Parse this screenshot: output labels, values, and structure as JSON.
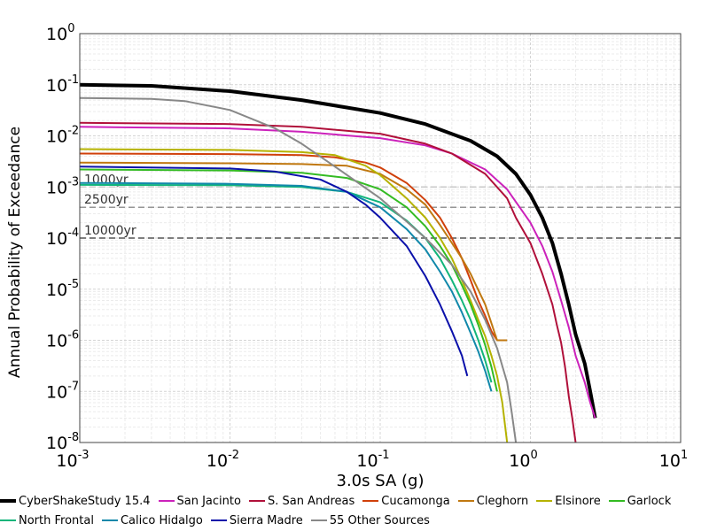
{
  "chart_data": {
    "type": "line",
    "xlabel": "3.0s SA (g)",
    "ylabel": "Annual Probability of Exceedance",
    "xscale": "log",
    "yscale": "log",
    "xlim": [
      0.001,
      10
    ],
    "ylim": [
      1e-08,
      1
    ],
    "grid": true,
    "legend_position": "bottom",
    "x_ticks": [
      {
        "base": "10",
        "exp": "-3"
      },
      {
        "base": "10",
        "exp": "-2"
      },
      {
        "base": "10",
        "exp": "-1"
      },
      {
        "base": "10",
        "exp": "0"
      },
      {
        "base": "10",
        "exp": "1"
      }
    ],
    "y_ticks": [
      {
        "base": "10",
        "exp": "0"
      },
      {
        "base": "10",
        "exp": "-1"
      },
      {
        "base": "10",
        "exp": "-2"
      },
      {
        "base": "10",
        "exp": "-3"
      },
      {
        "base": "10",
        "exp": "-4"
      },
      {
        "base": "10",
        "exp": "-5"
      },
      {
        "base": "10",
        "exp": "-6"
      },
      {
        "base": "10",
        "exp": "-7"
      },
      {
        "base": "10",
        "exp": "-8"
      }
    ],
    "reference_lines": [
      {
        "label": "1000yr",
        "y": 0.001,
        "color": "#c8c8c8"
      },
      {
        "label": "2500yr",
        "y": 0.0004,
        "color": "#969696"
      },
      {
        "label": "10000yr",
        "y": 0.0001,
        "color": "#555555"
      }
    ],
    "series": [
      {
        "name": "CyberShakeStudy 15.4",
        "color": "#000000",
        "width": 4,
        "x": [
          0.001,
          0.003,
          0.01,
          0.03,
          0.1,
          0.2,
          0.4,
          0.6,
          0.8,
          1.0,
          1.2,
          1.4,
          1.6,
          1.8,
          2.0,
          2.3,
          2.5,
          2.7
        ],
        "y": [
          0.1,
          0.095,
          0.075,
          0.05,
          0.028,
          0.017,
          0.008,
          0.004,
          0.0018,
          0.0007,
          0.00025,
          8e-05,
          2e-05,
          5e-06,
          1.3e-06,
          3.5e-07,
          1e-07,
          3e-08
        ]
      },
      {
        "name": "San Jacinto",
        "color": "#cc22bb",
        "width": 2,
        "x": [
          0.001,
          0.01,
          0.03,
          0.1,
          0.2,
          0.3,
          0.5,
          0.7,
          1.0,
          1.2,
          1.4,
          1.6,
          1.8,
          2.0,
          2.3,
          2.5,
          2.7
        ],
        "y": [
          0.015,
          0.014,
          0.012,
          0.009,
          0.0065,
          0.0045,
          0.0022,
          0.0009,
          0.0002,
          7e-05,
          2.2e-05,
          6e-06,
          1.8e-06,
          5e-07,
          1.5e-07,
          6e-08,
          3e-08
        ]
      },
      {
        "name": "S. San Andreas",
        "color": "#b0103a",
        "width": 2,
        "x": [
          0.001,
          0.01,
          0.03,
          0.1,
          0.2,
          0.3,
          0.5,
          0.7,
          0.8,
          1.0,
          1.2,
          1.4,
          1.5,
          1.6,
          1.7,
          1.8,
          1.9,
          2.0
        ],
        "y": [
          0.018,
          0.017,
          0.015,
          0.011,
          0.007,
          0.0045,
          0.0018,
          0.0006,
          0.00025,
          8e-05,
          2e-05,
          5e-06,
          2e-06,
          9e-07,
          3e-07,
          8e-08,
          3e-08,
          1e-08
        ]
      },
      {
        "name": "Cucamonga",
        "color": "#d0400a",
        "width": 2,
        "x": [
          0.001,
          0.01,
          0.03,
          0.05,
          0.08,
          0.1,
          0.15,
          0.2,
          0.25,
          0.3,
          0.35,
          0.4,
          0.45,
          0.5,
          0.55,
          0.6
        ],
        "y": [
          0.0045,
          0.0044,
          0.0042,
          0.0038,
          0.003,
          0.0024,
          0.0012,
          0.00055,
          0.00025,
          0.0001,
          4e-05,
          1.5e-05,
          6e-06,
          3e-06,
          1.5e-06,
          1e-06
        ]
      },
      {
        "name": "Cleghorn",
        "color": "#c07810",
        "width": 2,
        "x": [
          0.001,
          0.01,
          0.03,
          0.06,
          0.1,
          0.15,
          0.2,
          0.25,
          0.3,
          0.35,
          0.4,
          0.5,
          0.6,
          0.7
        ],
        "y": [
          0.003,
          0.0029,
          0.0028,
          0.0026,
          0.0018,
          0.0009,
          0.00045,
          0.00018,
          8e-05,
          4e-05,
          2e-05,
          5e-06,
          1e-06,
          1e-06
        ]
      },
      {
        "name": "Elsinore",
        "color": "#b5b200",
        "width": 2,
        "x": [
          0.001,
          0.01,
          0.03,
          0.05,
          0.08,
          0.1,
          0.15,
          0.2,
          0.25,
          0.3,
          0.35,
          0.4,
          0.45,
          0.5,
          0.55,
          0.6,
          0.65,
          0.68,
          0.7
        ],
        "y": [
          0.0055,
          0.0053,
          0.0048,
          0.0042,
          0.0026,
          0.0017,
          0.0006,
          0.00025,
          0.0001,
          4e-05,
          1.5e-05,
          6e-06,
          2.5e-06,
          1.2e-06,
          5e-07,
          2e-07,
          6e-08,
          2e-08,
          1e-08
        ]
      },
      {
        "name": "Garlock",
        "color": "#33bb22",
        "width": 2,
        "x": [
          0.001,
          0.01,
          0.03,
          0.06,
          0.1,
          0.15,
          0.2,
          0.25,
          0.3,
          0.35,
          0.4,
          0.45,
          0.5,
          0.55,
          0.6
        ],
        "y": [
          0.0022,
          0.0021,
          0.0019,
          0.0015,
          0.0009,
          0.0004,
          0.00017,
          7e-05,
          3e-05,
          1.2e-05,
          5e-06,
          2e-06,
          8e-07,
          3e-07,
          1e-07
        ]
      },
      {
        "name": "North Frontal",
        "color": "#11b57a",
        "width": 2,
        "x": [
          0.001,
          0.01,
          0.03,
          0.06,
          0.1,
          0.15,
          0.2,
          0.25,
          0.3,
          0.35,
          0.4,
          0.45,
          0.5,
          0.55
        ],
        "y": [
          0.0011,
          0.00108,
          0.001,
          0.0008,
          0.0005,
          0.00022,
          0.0001,
          4e-05,
          1.5e-05,
          6e-06,
          2.5e-06,
          1e-06,
          4e-07,
          1.5e-07
        ]
      },
      {
        "name": "Calico Hidalgo",
        "color": "#1188aa",
        "width": 2,
        "x": [
          0.001,
          0.01,
          0.03,
          0.06,
          0.1,
          0.15,
          0.2,
          0.25,
          0.3,
          0.35,
          0.4,
          0.45,
          0.5,
          0.55
        ],
        "y": [
          0.0012,
          0.00115,
          0.00105,
          0.0008,
          0.0004,
          0.00015,
          6e-05,
          2.2e-05,
          9e-06,
          3.5e-06,
          1.4e-06,
          6e-07,
          2.5e-07,
          1e-07
        ]
      },
      {
        "name": "Sierra Madre",
        "color": "#0a10aa",
        "width": 2,
        "x": [
          0.001,
          0.01,
          0.02,
          0.04,
          0.06,
          0.08,
          0.1,
          0.15,
          0.2,
          0.25,
          0.3,
          0.35,
          0.38
        ],
        "y": [
          0.0025,
          0.0023,
          0.002,
          0.0014,
          0.0008,
          0.00045,
          0.00025,
          7e-05,
          1.8e-05,
          5e-06,
          1.5e-06,
          5e-07,
          2e-07
        ]
      },
      {
        "name": "55 Other Sources",
        "color": "#888888",
        "width": 2,
        "x": [
          0.001,
          0.003,
          0.005,
          0.01,
          0.02,
          0.03,
          0.05,
          0.1,
          0.2,
          0.3,
          0.4,
          0.5,
          0.6,
          0.7,
          0.75,
          0.8
        ],
        "y": [
          0.055,
          0.053,
          0.048,
          0.032,
          0.014,
          0.007,
          0.0025,
          0.0006,
          0.0001,
          3e-05,
          9e-06,
          2.5e-06,
          7e-07,
          1.5e-07,
          4e-08,
          1e-08
        ]
      }
    ]
  }
}
